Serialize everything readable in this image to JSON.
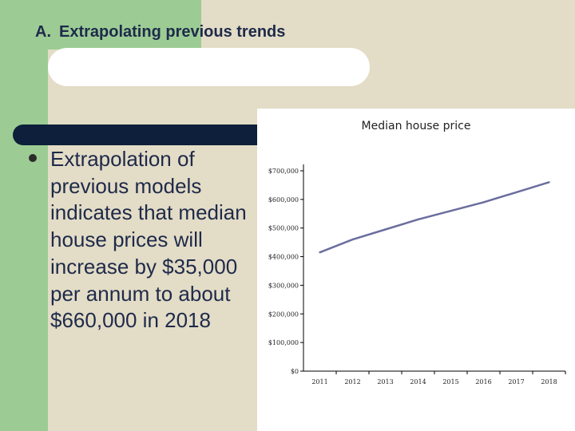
{
  "slide": {
    "section_letter": "A.",
    "title": "Extrapolating previous trends",
    "bullet": "Extrapolation of previous models indicates that median house prices will increase by $35,000 per annum to about $660,000 in 2018"
  },
  "colors": {
    "background": "#e3dcc6",
    "green_accent": "#9ccc94",
    "navy_bar": "#0d1f3a",
    "text": "#1e2a4a",
    "series_line": "#6b6e9e"
  },
  "chart_data": {
    "type": "line",
    "title": "Median house price",
    "xlabel": "",
    "ylabel": "",
    "categories": [
      "2011",
      "2012",
      "2013",
      "2014",
      "2015",
      "2016",
      "2017",
      "2018"
    ],
    "series": [
      {
        "name": "Median house price",
        "values": [
          415000,
          460000,
          495000,
          530000,
          560000,
          590000,
          625000,
          660000
        ]
      }
    ],
    "yticks": [
      0,
      100000,
      200000,
      300000,
      400000,
      500000,
      600000,
      700000
    ],
    "ytick_labels": [
      "$0",
      "$100,000",
      "$200,000",
      "$300,000",
      "$400,000",
      "$500,000",
      "$600,000",
      "$700,000"
    ],
    "ylim": [
      0,
      700000
    ],
    "grid": false,
    "legend": "none"
  }
}
